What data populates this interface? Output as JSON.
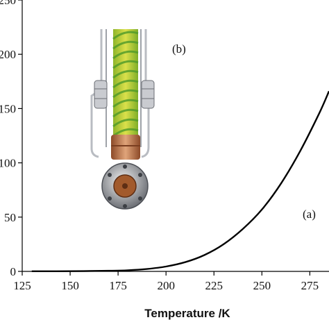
{
  "chart_data": {
    "type": "line",
    "title": "",
    "xlabel": "Temperature /K",
    "ylabel": "",
    "xlim": [
      125,
      285
    ],
    "ylim": [
      0,
      250
    ],
    "x_ticks": [
      125,
      150,
      175,
      200,
      225,
      250,
      275
    ],
    "y_ticks": [
      0,
      50,
      100,
      150,
      200,
      250
    ],
    "y_tick_labels": [
      "0",
      "50",
      "100",
      "150",
      "200",
      "250"
    ],
    "grid": false,
    "series": [
      {
        "color": "#000000",
        "x": [
          130,
          150,
          170,
          180,
          190,
          200,
          210,
          220,
          230,
          240,
          250,
          260,
          270,
          280,
          285
        ],
        "y": [
          0.1,
          0.2,
          0.6,
          1.0,
          2.2,
          4.5,
          8.5,
          15,
          25,
          39,
          57,
          81,
          111,
          146,
          166
        ]
      }
    ],
    "annotations": [
      {
        "text": "(a)"
      },
      {
        "text": "(b)"
      }
    ]
  },
  "inset_photo": {
    "description_icon": "cryostat-probe-photo",
    "colors": {
      "sleeve_yellow": "#d9d62e",
      "sleeve_green": "#7cc23a",
      "copper": "#c57a4a",
      "steel": "#b9bcc2"
    }
  }
}
